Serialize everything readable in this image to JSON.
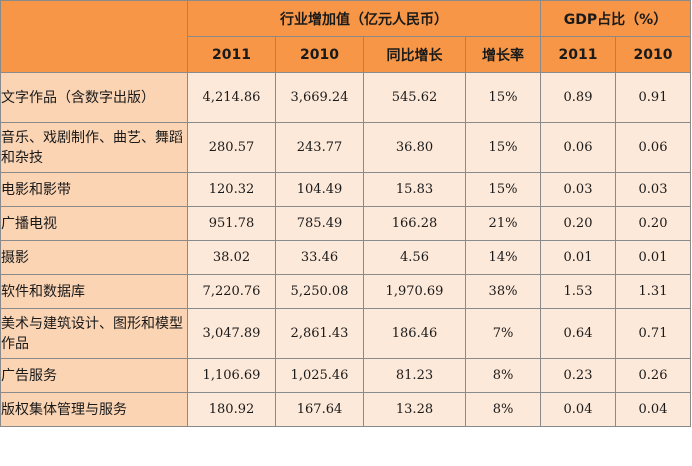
{
  "header": {
    "group_value": "行业增加值（亿元人民币）",
    "group_gdp": "GDP占比（%）",
    "sub": [
      "2011",
      "2010",
      "同比增长",
      "增长率",
      "2011",
      "2010"
    ]
  },
  "rows": [
    {
      "category": "文字作品（含数字出版）",
      "v2011": "4,214.86",
      "v2010": "3,669.24",
      "yoy": "545.62",
      "rate": "15%",
      "gdp2011": "0.89",
      "gdp2010": "0.91"
    },
    {
      "category": "音乐、戏剧制作、曲艺、舞蹈和杂技",
      "v2011": "280.57",
      "v2010": "243.77",
      "yoy": "36.80",
      "rate": "15%",
      "gdp2011": "0.06",
      "gdp2010": "0.06"
    },
    {
      "category": "电影和影带",
      "v2011": "120.32",
      "v2010": "104.49",
      "yoy": "15.83",
      "rate": "15%",
      "gdp2011": "0.03",
      "gdp2010": "0.03"
    },
    {
      "category": "广播电视",
      "v2011": "951.78",
      "v2010": "785.49",
      "yoy": "166.28",
      "rate": "21%",
      "gdp2011": "0.20",
      "gdp2010": "0.20"
    },
    {
      "category": "摄影",
      "v2011": "38.02",
      "v2010": "33.46",
      "yoy": "4.56",
      "rate": "14%",
      "gdp2011": "0.01",
      "gdp2010": "0.01"
    },
    {
      "category": "软件和数据库",
      "v2011": "7,220.76",
      "v2010": "5,250.08",
      "yoy": "1,970.69",
      "rate": "38%",
      "gdp2011": "1.53",
      "gdp2010": "1.31"
    },
    {
      "category": "美术与建筑设计、图形和模型作品",
      "v2011": "3,047.89",
      "v2010": "2,861.43",
      "yoy": "186.46",
      "rate": "7%",
      "gdp2011": "0.64",
      "gdp2010": "0.71"
    },
    {
      "category": "广告服务",
      "v2011": "1,106.69",
      "v2010": "1,025.46",
      "yoy": "81.23",
      "rate": "8%",
      "gdp2011": "0.23",
      "gdp2010": "0.26"
    },
    {
      "category": "版权集体管理与服务",
      "v2011": "180.92",
      "v2010": "167.64",
      "yoy": "13.28",
      "rate": "8%",
      "gdp2011": "0.04",
      "gdp2010": "0.04"
    }
  ]
}
